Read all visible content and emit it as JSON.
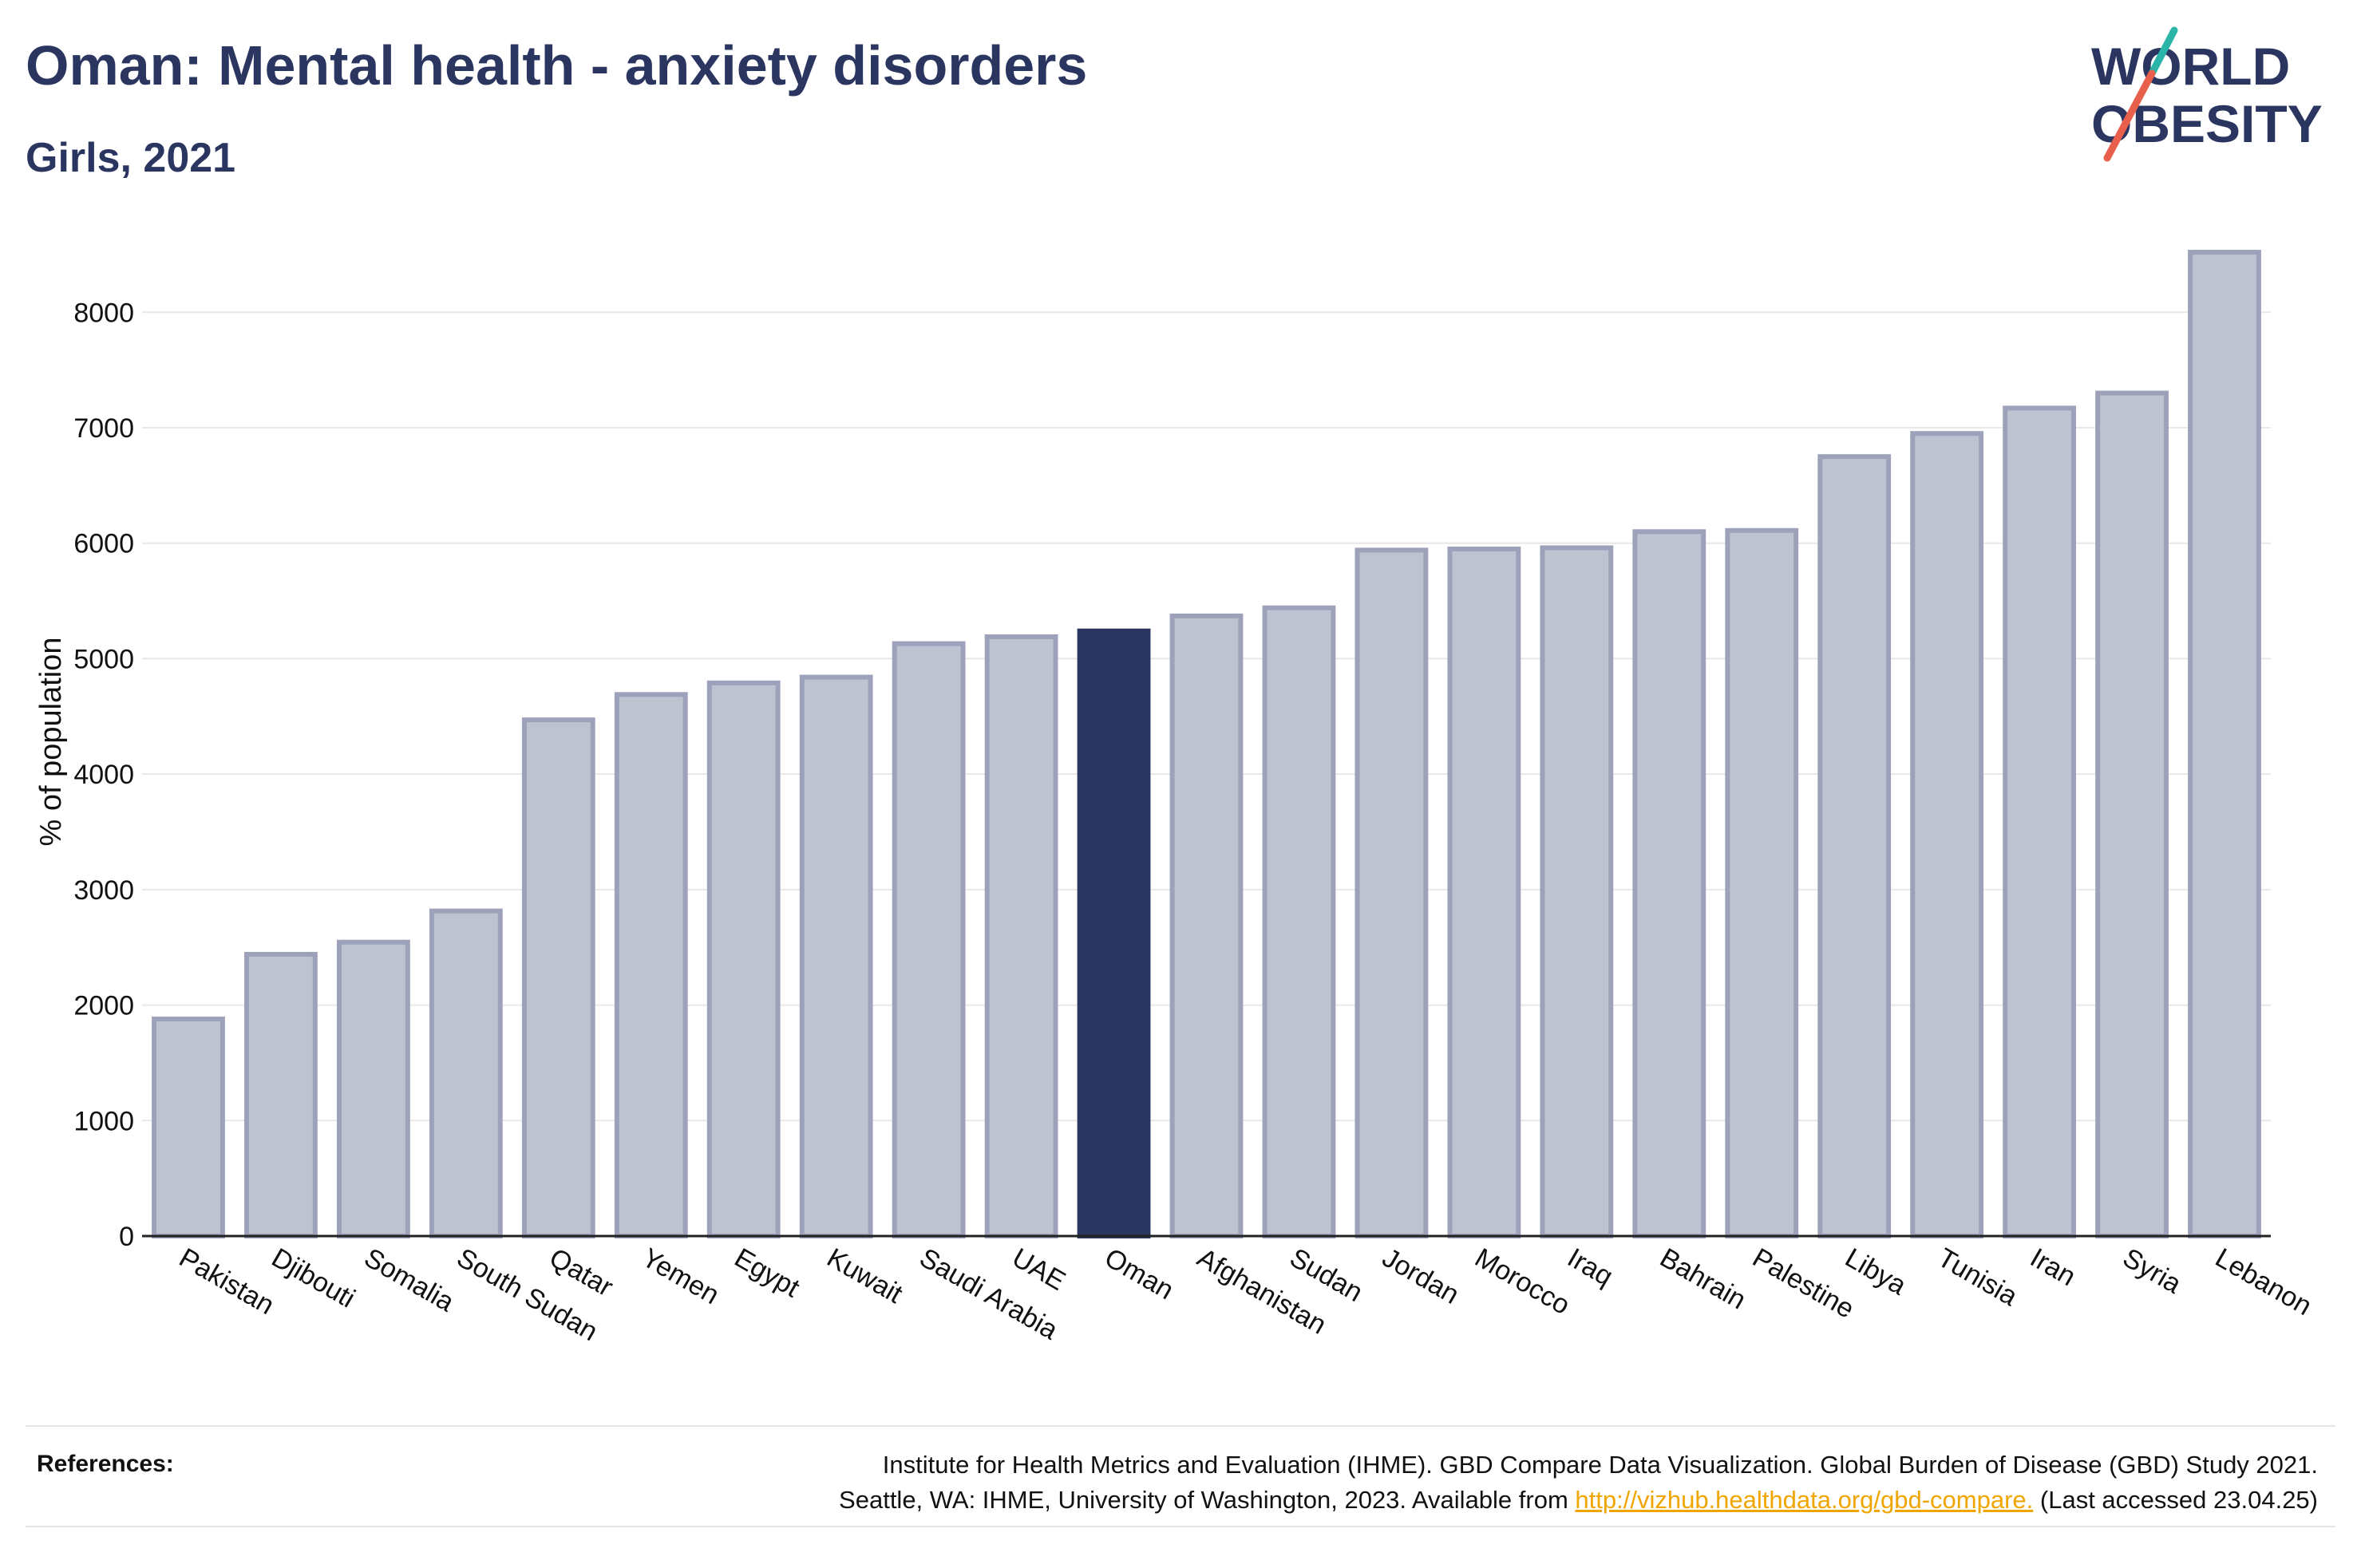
{
  "header": {
    "title": "Oman: Mental health - anxiety disorders",
    "subtitle": "Girls, 2021"
  },
  "logo": {
    "line1": "WORLD",
    "line2": "OBESITY",
    "colors": {
      "text": "#2a3560",
      "slash_teal": "#2bb5a8",
      "slash_red": "#e8604c"
    }
  },
  "chart_data": {
    "type": "bar",
    "ylabel": "% of population",
    "xlabel": "",
    "ylim": [
      0,
      8700
    ],
    "yticks": [
      0,
      1000,
      2000,
      3000,
      4000,
      5000,
      6000,
      7000,
      8000
    ],
    "grid": true,
    "highlight": "Oman",
    "colors": {
      "bar": "#bfc2d0",
      "bar_edge": "#9da2ba",
      "highlight": "#2a3560",
      "grid": "#e8e8e8"
    },
    "categories": [
      "Pakistan",
      "Djibouti",
      "Somalia",
      "South Sudan",
      "Qatar",
      "Yemen",
      "Egypt",
      "Kuwait",
      "Saudi Arabia",
      "UAE",
      "Oman",
      "Afghanistan",
      "Sudan",
      "Jordan",
      "Morocco",
      "Iraq",
      "Bahrain",
      "Palestine",
      "Libya",
      "Tunisia",
      "Iran",
      "Syria",
      "Lebanon"
    ],
    "values": [
      1880,
      2440,
      2545,
      2815,
      4470,
      4690,
      4790,
      4840,
      5130,
      5190,
      5240,
      5370,
      5440,
      5940,
      5950,
      5960,
      6100,
      6110,
      6750,
      6950,
      7170,
      7300,
      8520
    ]
  },
  "references": {
    "label": "References:",
    "line1": "Institute for Health Metrics and Evaluation (IHME). GBD Compare Data Visualization. Global Burden of Disease (GBD) Study 2021.",
    "line2_before": "Seattle, WA: IHME, University of Washington, 2023. Available from ",
    "link": "http://vizhub.healthdata.org/gbd-compare.",
    "line2_after": " (Last accessed 23.04.25)"
  }
}
